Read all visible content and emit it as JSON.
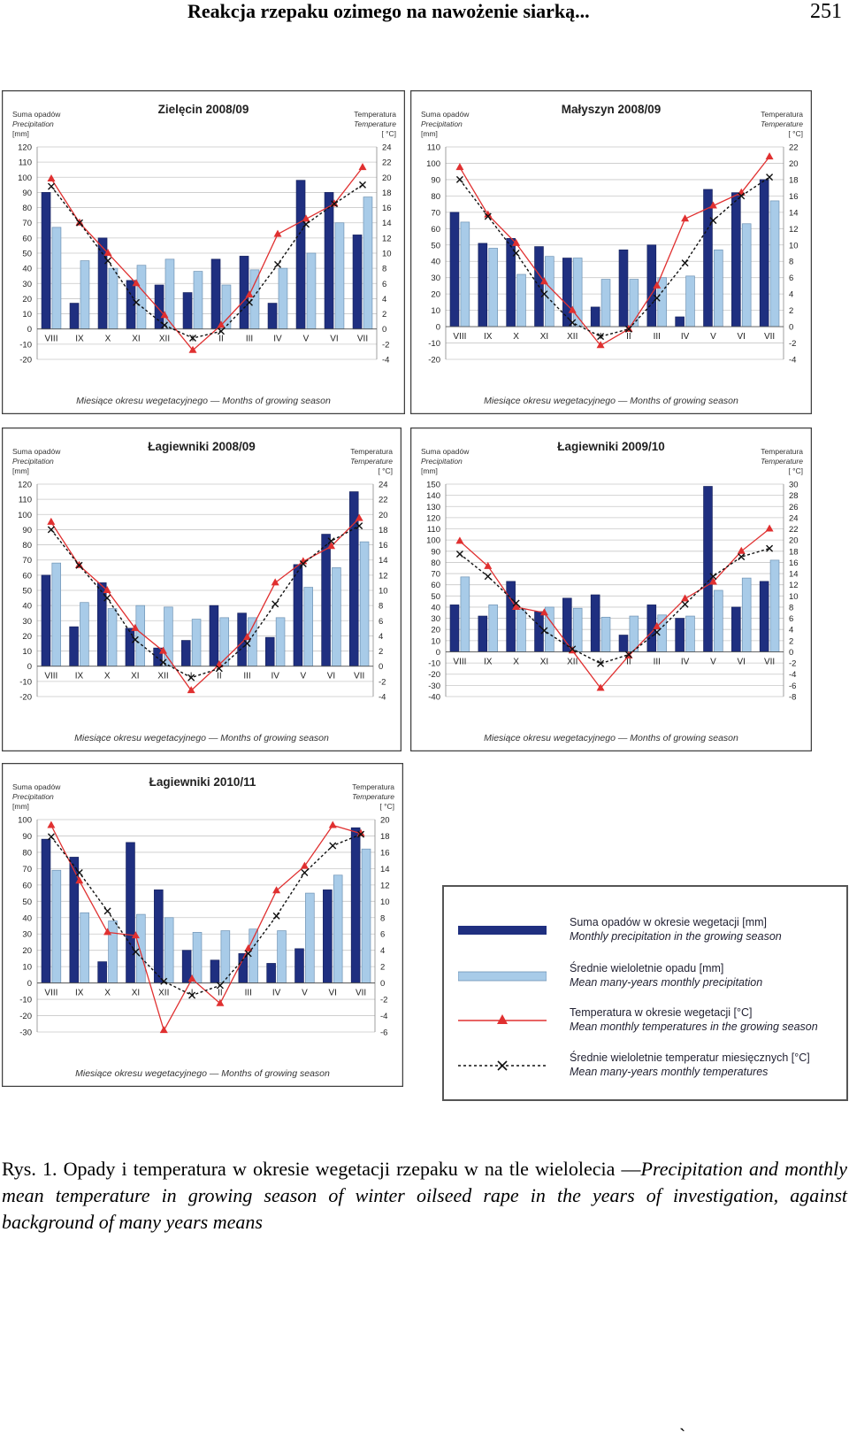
{
  "header": {
    "running_title": "Reakcja rzepaku ozimego na nawożenie siarką...",
    "page_number": "251"
  },
  "colors": {
    "bar_current": "#1f2f80",
    "bar_mean": "#a8cbe8",
    "temp_current": "#e03030",
    "temp_mean": "#111111",
    "grid": "#c8c8c8",
    "frame": "#404040"
  },
  "common": {
    "left_axis_label_pl": "Suma opadów",
    "left_axis_label_en": "Precipitation",
    "left_axis_unit": "[mm]",
    "right_axis_label_pl": "Temperatura",
    "right_axis_label_en": "Temperature",
    "right_axis_unit": "[ °C]",
    "xlabel": "Miesiące okresu wegetacyjnego — Months of growing season"
  },
  "chart_data": [
    {
      "type": "bar",
      "site": "Zielęcin",
      "season": "2008/09",
      "categories": [
        "VIII",
        "IX",
        "X",
        "XI",
        "XII",
        "I",
        "II",
        "III",
        "IV",
        "V",
        "VI",
        "VII"
      ],
      "ylim": [
        -20,
        120
      ],
      "yticks": [
        -20,
        -10,
        0,
        10,
        20,
        30,
        40,
        50,
        60,
        70,
        80,
        90,
        100,
        110,
        120
      ],
      "y2lim": [
        -4,
        24
      ],
      "y2ticks": [
        -4,
        -2,
        0,
        2,
        4,
        6,
        8,
        10,
        12,
        14,
        16,
        18,
        20,
        22,
        24
      ],
      "series": [
        {
          "name": "Suma opadów w okresie wegetacji [mm] — Monthly precipitation in the growing season",
          "kind": "bar",
          "values": [
            90,
            17,
            60,
            32,
            29,
            24,
            46,
            48,
            17,
            98,
            90,
            62
          ]
        },
        {
          "name": "Średnie wieloletnie opadu [mm] — Mean many-years monthly precipitation",
          "kind": "bar",
          "values": [
            67,
            45,
            40,
            42,
            46,
            38,
            29,
            39,
            40,
            50,
            70,
            87
          ]
        },
        {
          "name": "Temperatura w okresie wegetacji [°C] — Mean monthly temperatures in the growing season",
          "kind": "line",
          "axis": "right",
          "values": [
            19.8,
            14.0,
            10.0,
            6.0,
            1.8,
            -2.8,
            0.5,
            4.5,
            12.5,
            14.5,
            16.5,
            21.3
          ]
        },
        {
          "name": "Średnie wieloletnie temperatur miesięcznych [°C] — Mean many-years monthly temperatures",
          "kind": "line",
          "axis": "right",
          "values": [
            18.8,
            14.0,
            9.0,
            3.5,
            0.5,
            -1.2,
            -0.3,
            3.5,
            8.5,
            13.8,
            16.5,
            19.0
          ]
        }
      ]
    },
    {
      "type": "bar",
      "site": "Małyszyn",
      "season": "2008/09",
      "categories": [
        "VIII",
        "IX",
        "X",
        "XI",
        "XII",
        "I",
        "II",
        "III",
        "IV",
        "V",
        "VI",
        "VII"
      ],
      "ylim": [
        -20,
        110
      ],
      "yticks": [
        -20,
        -10,
        0,
        10,
        20,
        30,
        40,
        50,
        60,
        70,
        80,
        90,
        100,
        110
      ],
      "y2lim": [
        -4,
        22
      ],
      "y2ticks": [
        -4,
        -2,
        0,
        2,
        4,
        6,
        8,
        10,
        12,
        14,
        16,
        18,
        20,
        22
      ],
      "series": [
        {
          "name": "Suma opadów w okresie wegetacji [mm] — Monthly precipitation in the growing season",
          "kind": "bar",
          "values": [
            70,
            51,
            54,
            49,
            42,
            12,
            47,
            50,
            6,
            84,
            82,
            90
          ]
        },
        {
          "name": "Średnie wieloletnie opadu [mm] — Mean many-years monthly precipitation",
          "kind": "bar",
          "values": [
            64,
            48,
            32,
            43,
            42,
            29,
            29,
            30,
            31,
            47,
            63,
            77
          ]
        },
        {
          "name": "Temperatura w okresie wegetacji [°C] — Mean monthly temperatures in the growing season",
          "kind": "line",
          "axis": "right",
          "values": [
            19.5,
            13.7,
            10.2,
            5.5,
            2.0,
            -2.3,
            -0.3,
            5.0,
            13.2,
            14.8,
            16.4,
            20.8
          ]
        },
        {
          "name": "Średnie wieloletnie temperatur miesięcznych [°C] — Mean many-years monthly temperatures",
          "kind": "line",
          "axis": "right",
          "values": [
            18.0,
            13.5,
            9.0,
            4.0,
            0.5,
            -1.2,
            -0.3,
            3.5,
            7.8,
            13.0,
            16.0,
            18.3
          ]
        }
      ]
    },
    {
      "type": "bar",
      "site": "Łagiewniki",
      "season": "2008/09",
      "categories": [
        "VIII",
        "IX",
        "X",
        "XI",
        "XII",
        "I",
        "II",
        "III",
        "IV",
        "V",
        "VI",
        "VII"
      ],
      "ylim": [
        -20,
        120
      ],
      "yticks": [
        -20,
        -10,
        0,
        10,
        20,
        30,
        40,
        50,
        60,
        70,
        80,
        90,
        100,
        110,
        120
      ],
      "y2lim": [
        -4,
        24
      ],
      "y2ticks": [
        -4,
        -2,
        0,
        2,
        4,
        6,
        8,
        10,
        12,
        14,
        16,
        18,
        20,
        22,
        24
      ],
      "series": [
        {
          "name": "Suma opadów w okresie wegetacji [mm] — Monthly precipitation in the growing season",
          "kind": "bar",
          "values": [
            60,
            26,
            55,
            25,
            12,
            17,
            40,
            35,
            19,
            67,
            87,
            115
          ]
        },
        {
          "name": "Średnie wieloletnie opadu [mm] — Mean many-years monthly precipitation",
          "kind": "bar",
          "values": [
            68,
            42,
            38,
            40,
            39,
            31,
            32,
            32,
            32,
            52,
            65,
            82
          ]
        },
        {
          "name": "Temperatura w okresie wegetacji [°C] — Mean monthly temperatures in the growing season",
          "kind": "line",
          "axis": "right",
          "values": [
            19.0,
            13.3,
            10.0,
            5.0,
            2.0,
            -3.2,
            0.2,
            3.8,
            11.0,
            13.8,
            15.8,
            19.5
          ]
        },
        {
          "name": "Średnie wieloletnie temperatur miesięcznych [°C] — Mean many-years monthly temperatures",
          "kind": "line",
          "axis": "right",
          "values": [
            18.0,
            13.3,
            9.0,
            3.5,
            0.5,
            -1.5,
            -0.3,
            3.0,
            8.2,
            13.5,
            16.5,
            18.5
          ]
        }
      ]
    },
    {
      "type": "bar",
      "site": "Łagiewniki",
      "season": "2009/10",
      "categories": [
        "VIII",
        "IX",
        "X",
        "XI",
        "XII",
        "I",
        "II",
        "III",
        "IV",
        "V",
        "VI",
        "VII"
      ],
      "ylim": [
        -40,
        150
      ],
      "yticks": [
        -40,
        -30,
        -20,
        -10,
        0,
        10,
        20,
        30,
        40,
        50,
        60,
        70,
        80,
        90,
        100,
        110,
        120,
        130,
        140,
        150
      ],
      "y2lim": [
        -8,
        30
      ],
      "y2ticks": [
        -8,
        -6,
        -4,
        -2,
        0,
        2,
        4,
        6,
        8,
        10,
        12,
        14,
        16,
        18,
        20,
        22,
        24,
        26,
        28,
        30
      ],
      "series": [
        {
          "name": "Suma opadów w okresie wegetacji [mm] — Monthly precipitation in the growing season",
          "kind": "bar",
          "values": [
            42,
            32,
            63,
            36,
            48,
            51,
            15,
            42,
            30,
            148,
            40,
            63
          ]
        },
        {
          "name": "Średnie wieloletnie opadu [mm] — Mean many-years monthly precipitation",
          "kind": "bar",
          "values": [
            67,
            42,
            38,
            40,
            39,
            31,
            32,
            33,
            32,
            55,
            66,
            82
          ]
        },
        {
          "name": "Temperatura w okresie wegetacji [°C] — Mean monthly temperatures in the growing season",
          "kind": "line",
          "axis": "right",
          "values": [
            19.8,
            15.3,
            8.0,
            7.0,
            0.2,
            -6.5,
            -0.7,
            4.5,
            9.5,
            12.5,
            18.0,
            22.0
          ]
        },
        {
          "name": "Średnie wieloletnie temperatur miesięcznych [°C] — Mean many-years monthly temperatures",
          "kind": "line",
          "axis": "right",
          "values": [
            17.5,
            13.5,
            8.7,
            3.8,
            0.5,
            -2.1,
            -0.5,
            3.5,
            8.5,
            13.5,
            17.0,
            18.5
          ]
        }
      ]
    },
    {
      "type": "bar",
      "site": "Łagiewniki",
      "season": "2010/11",
      "categories": [
        "VIII",
        "IX",
        "X",
        "XI",
        "XII",
        "I",
        "II",
        "III",
        "IV",
        "V",
        "VI",
        "VII"
      ],
      "ylim": [
        -30,
        100
      ],
      "yticks": [
        -30,
        -20,
        -10,
        0,
        10,
        20,
        30,
        40,
        50,
        60,
        70,
        80,
        90,
        100
      ],
      "y2lim": [
        -6,
        20
      ],
      "y2ticks": [
        -6,
        -4,
        -2,
        0,
        2,
        4,
        6,
        8,
        10,
        12,
        14,
        16,
        18,
        20
      ],
      "series": [
        {
          "name": "Suma opadów w okresie wegetacji [mm] — Monthly precipitation in the growing season",
          "kind": "bar",
          "values": [
            88,
            77,
            13,
            86,
            57,
            20,
            14,
            18,
            12,
            21,
            57,
            95
          ]
        },
        {
          "name": "Średnie wieloletnie opadu [mm] — Mean many-years monthly precipitation",
          "kind": "bar",
          "values": [
            69,
            43,
            38,
            42,
            40,
            31,
            32,
            33,
            32,
            55,
            66,
            82
          ]
        },
        {
          "name": "Temperatura w okresie wegetacji [°C] — Mean monthly temperatures in the growing season",
          "kind": "line",
          "axis": "right",
          "values": [
            19.3,
            12.5,
            6.2,
            5.8,
            -5.8,
            0.5,
            -2.5,
            4.2,
            11.3,
            14.3,
            19.3,
            18.3
          ]
        },
        {
          "name": "Średnie wieloletnie temperatur miesięcznych [°C] — Mean many-years monthly temperatures",
          "kind": "line",
          "axis": "right",
          "values": [
            17.9,
            13.5,
            8.8,
            3.8,
            0.2,
            -1.5,
            -0.3,
            3.6,
            8.2,
            13.5,
            16.8,
            18.2
          ]
        }
      ]
    }
  ],
  "legend": [
    {
      "pl": "Suma opadów w okresie wegetacji [mm]",
      "en": "Monthly precipitation in the growing season"
    },
    {
      "pl": "Średnie wieloletnie opadu [mm]",
      "en": "Mean many-years monthly precipitation"
    },
    {
      "pl": "Temperatura w okresie wegetacji [°C]",
      "en": "Mean monthly temperatures in the growing season"
    },
    {
      "pl": "Średnie wieloletnie temperatur miesięcznych [°C]",
      "en": "Mean many-years monthly temperatures"
    }
  ],
  "caption": {
    "label": "Rys. 1.",
    "text_pl": "Opady i temperatura w okresie wegetacji rzepaku w na tle wielolecia —",
    "text_en": "Precipitation and monthly mean temperature in growing season of winter oilseed rape in the years of investigation, against background of many years means"
  },
  "stray_mark": "`"
}
